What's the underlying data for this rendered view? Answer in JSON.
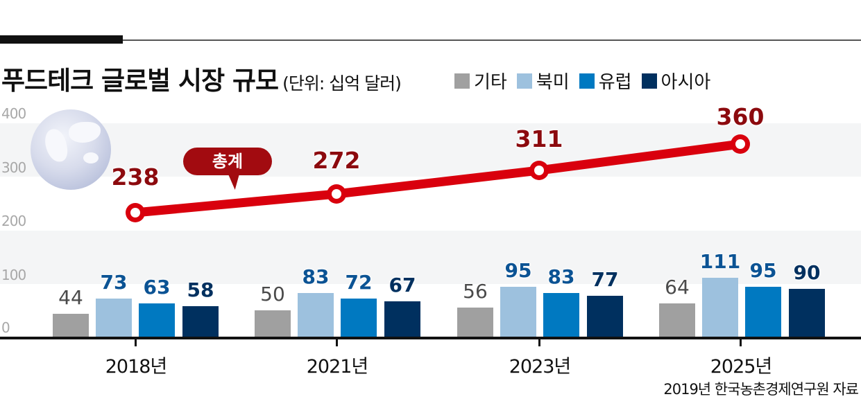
{
  "header": {
    "title": "푸드테크 글로벌 시장 규모",
    "unit": "(단위: 십억 달러)"
  },
  "legend": [
    {
      "label": "기타",
      "color": "#a0a0a0"
    },
    {
      "label": "북미",
      "color": "#9dc1de"
    },
    {
      "label": "유럽",
      "color": "#0079c1"
    },
    {
      "label": "아시아",
      "color": "#00305f"
    }
  ],
  "y_axis": {
    "ticks": [
      "400",
      "300",
      "200",
      "100",
      "0"
    ]
  },
  "callout": {
    "label": "총계"
  },
  "source": "2019년 한국농촌경제연구원 자료",
  "chart_data": {
    "type": "bar",
    "title": "푸드테크 글로벌 시장 규모",
    "subtitle": "(단위: 십억 달러)",
    "xlabel": "",
    "ylabel": "십억 달러",
    "ylim": [
      0,
      400
    ],
    "yticks": [
      0,
      100,
      200,
      300,
      400
    ],
    "categories": [
      "2018년",
      "2021년",
      "2023년",
      "2025년"
    ],
    "series": [
      {
        "name": "기타",
        "color": "#a0a0a0",
        "values": [
          44,
          50,
          56,
          64
        ]
      },
      {
        "name": "북미",
        "color": "#9dc1de",
        "values": [
          73,
          83,
          95,
          111
        ]
      },
      {
        "name": "유럽",
        "color": "#0079c1",
        "values": [
          63,
          72,
          83,
          95
        ]
      },
      {
        "name": "아시아",
        "color": "#00305f",
        "values": [
          58,
          67,
          77,
          90
        ]
      }
    ],
    "overlay_line": {
      "name": "총계",
      "type": "line",
      "color": "#d9000d",
      "values": [
        238,
        272,
        311,
        360
      ]
    },
    "legend_position": "top",
    "grid": "alternating horizontal bands",
    "source": "2019년 한국농촌경제연구원 자료"
  }
}
